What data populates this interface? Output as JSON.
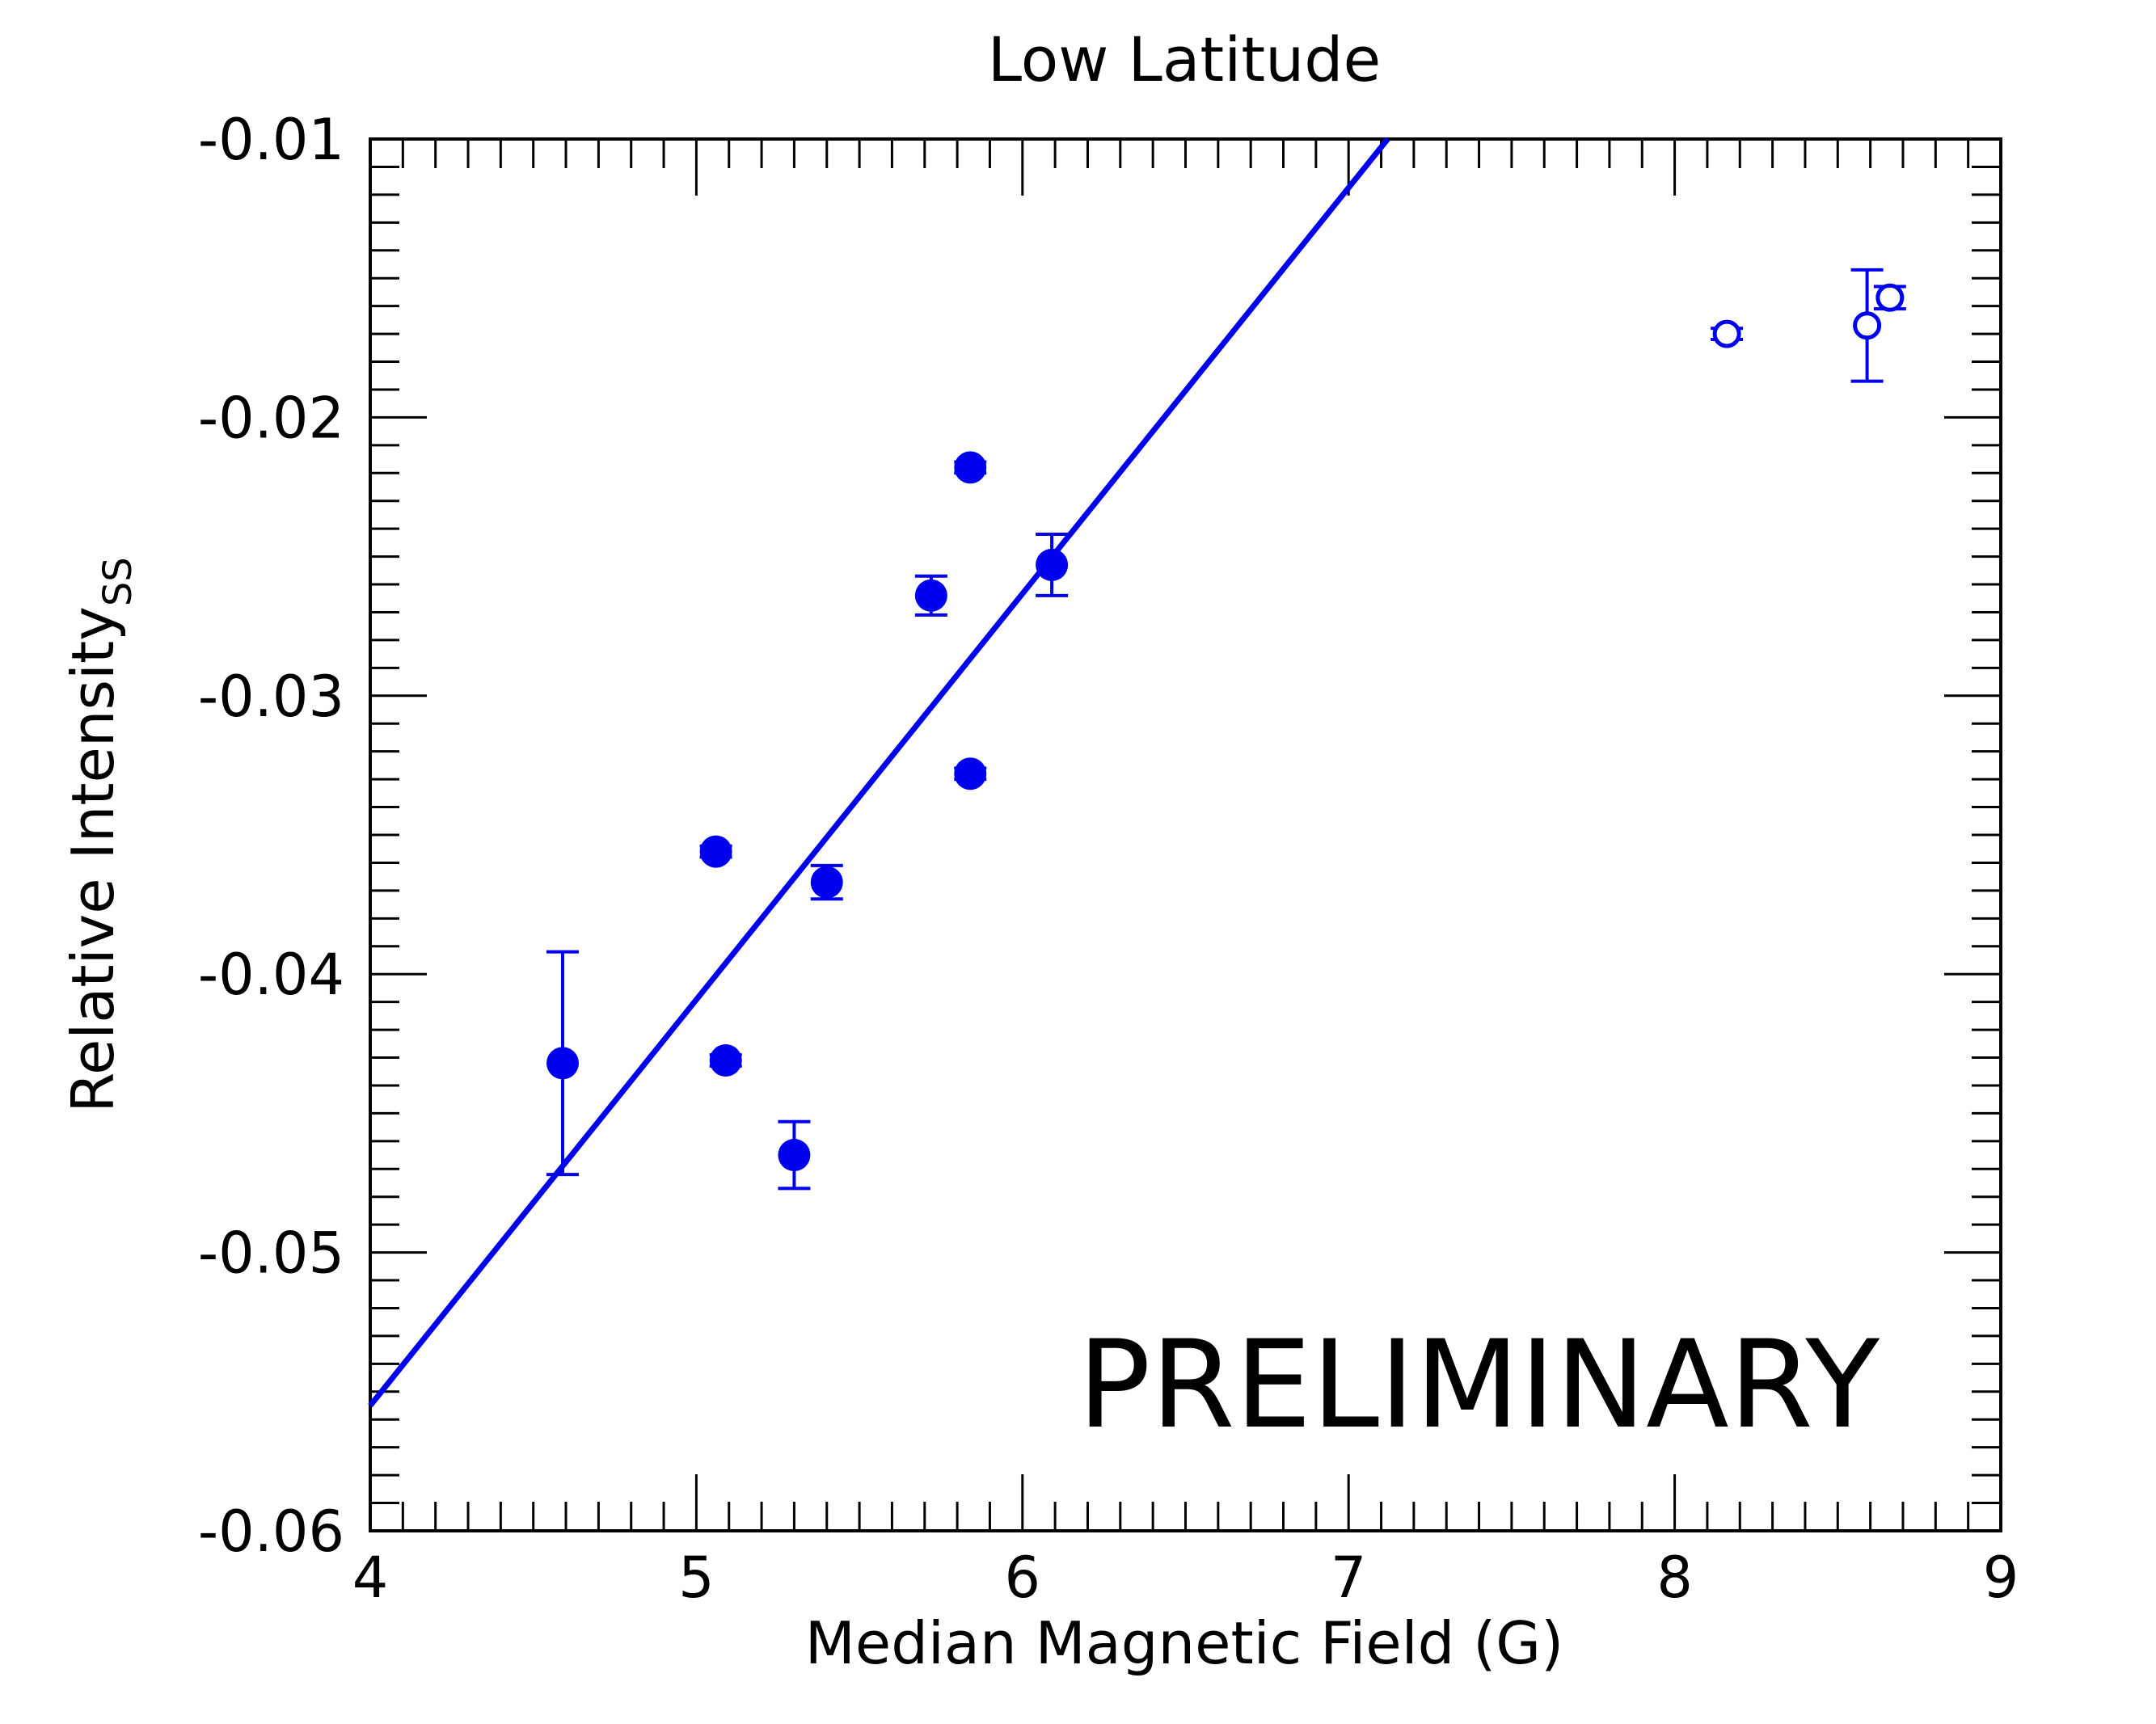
{
  "chart_data": {
    "type": "scatter",
    "title": "Low Latitude",
    "xlabel": "Median Magnetic Field (G)",
    "ylabel_main": "Relative Intensity",
    "ylabel_sub": "SS",
    "xlim": [
      4,
      9
    ],
    "ylim": [
      -0.06,
      -0.01
    ],
    "x_ticks": [
      4,
      5,
      6,
      7,
      8,
      9
    ],
    "x_tick_labels": [
      "4",
      "5",
      "6",
      "7",
      "8",
      "9"
    ],
    "y_ticks": [
      -0.06,
      -0.05,
      -0.04,
      -0.03,
      -0.02,
      -0.01
    ],
    "y_tick_labels": [
      "-0.06",
      "-0.05",
      "-0.04",
      "-0.03",
      "-0.02",
      "-0.01"
    ],
    "color": "#0000ee",
    "annotation": "PRELIMINARY",
    "series": [
      {
        "name": "filled",
        "marker": "filled-circle",
        "points": [
          {
            "x": 4.59,
            "y": -0.0432,
            "err_low": 0.004,
            "err_high": 0.004
          },
          {
            "x": 5.06,
            "y": -0.0356,
            "err_low": 0.0002,
            "err_high": 0.0002
          },
          {
            "x": 5.09,
            "y": -0.0431,
            "err_low": 0.0002,
            "err_high": 0.0002
          },
          {
            "x": 5.3,
            "y": -0.0465,
            "err_low": 0.0012,
            "err_high": 0.0012
          },
          {
            "x": 5.4,
            "y": -0.0367,
            "err_low": 0.0006,
            "err_high": 0.0006
          },
          {
            "x": 5.72,
            "y": -0.0264,
            "err_low": 0.0007,
            "err_high": 0.0007
          },
          {
            "x": 5.84,
            "y": -0.0218,
            "err_low": 0.0002,
            "err_high": 0.0002
          },
          {
            "x": 5.84,
            "y": -0.0328,
            "err_low": 0.0002,
            "err_high": 0.0002
          },
          {
            "x": 6.09,
            "y": -0.0253,
            "err_low": 0.0011,
            "err_high": 0.0011
          }
        ]
      },
      {
        "name": "open",
        "marker": "open-circle",
        "points": [
          {
            "x": 8.16,
            "y": -0.017,
            "err_low": 0.0002,
            "err_high": 0.0002
          },
          {
            "x": 8.59,
            "y": -0.0167,
            "err_low": 0.002,
            "err_high": 0.002
          },
          {
            "x": 8.66,
            "y": -0.0157,
            "err_low": 0.0004,
            "err_high": 0.0004
          }
        ]
      }
    ],
    "fit_line": {
      "x": [
        4.0,
        7.12
      ],
      "y": [
        -0.0555,
        -0.01
      ]
    }
  }
}
